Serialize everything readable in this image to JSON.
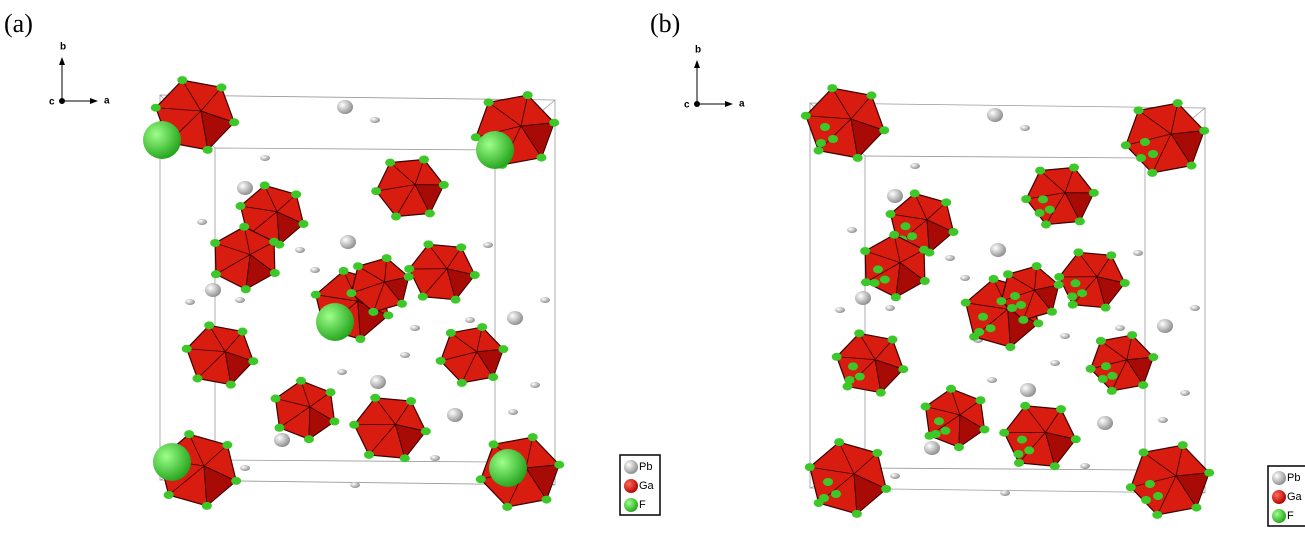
{
  "panels": [
    {
      "label": "(a)",
      "axis_labels": [
        "b",
        "a",
        "c"
      ],
      "legend": [
        "Pb",
        "Ga",
        "F"
      ]
    },
    {
      "label": "(b)",
      "axis_labels": [
        "b",
        "a",
        "c"
      ],
      "legend": [
        "Pb",
        "Ga",
        "F"
      ]
    }
  ]
}
